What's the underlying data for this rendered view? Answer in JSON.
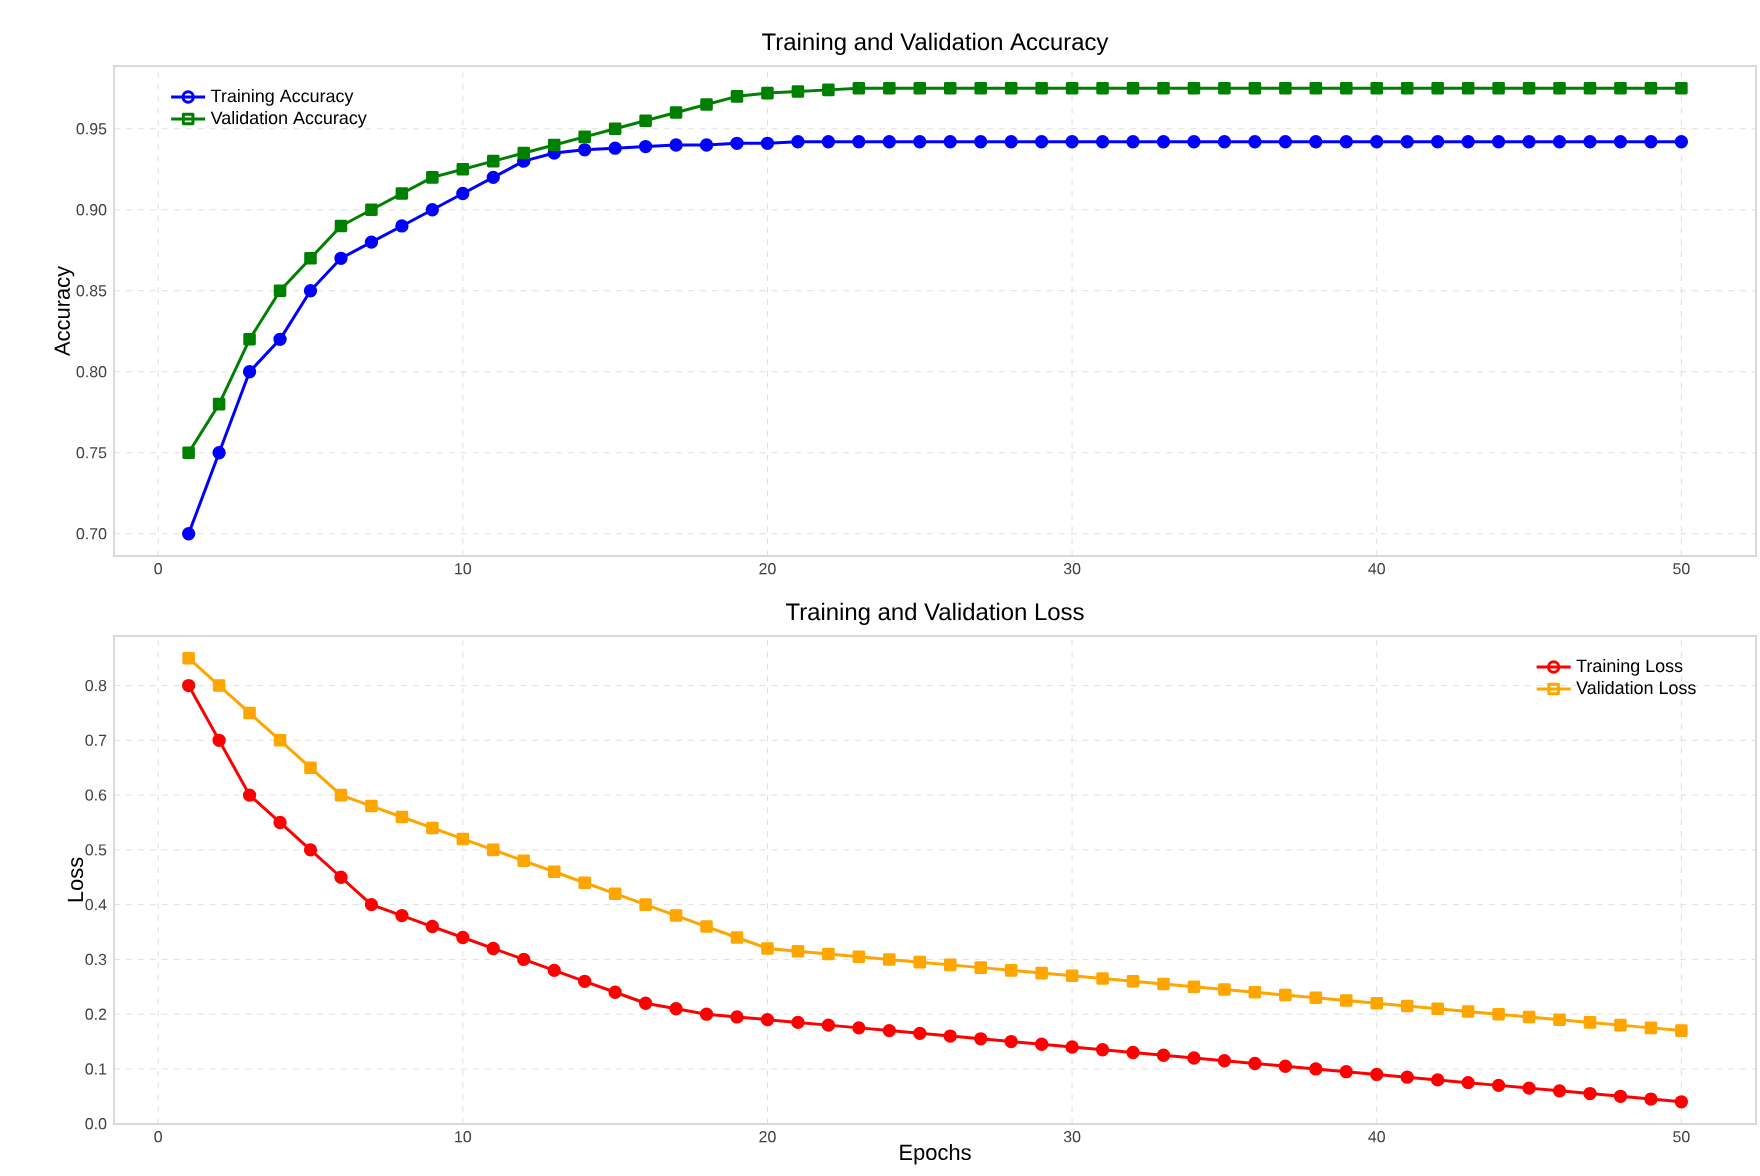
{
  "chart_data": [
    {
      "type": "line",
      "title": "Training and Validation Accuracy",
      "ylabel": "Accuracy",
      "x": [
        1,
        2,
        3,
        4,
        5,
        6,
        7,
        8,
        9,
        10,
        11,
        12,
        13,
        14,
        15,
        16,
        17,
        18,
        19,
        20,
        21,
        22,
        23,
        24,
        25,
        26,
        27,
        28,
        29,
        30,
        31,
        32,
        33,
        34,
        35,
        36,
        37,
        38,
        39,
        40,
        41,
        42,
        43,
        44,
        45,
        46,
        47,
        48,
        49,
        50
      ],
      "xlim": [
        -1.45,
        52.45
      ],
      "ylim": [
        0.68625,
        0.98875
      ],
      "xticks": [
        0,
        10,
        20,
        30,
        40,
        50
      ],
      "yticks": [
        {
          "value": 0.7,
          "label": "0.70"
        },
        {
          "value": 0.75,
          "label": "0.75"
        },
        {
          "value": 0.8,
          "label": "0.80"
        },
        {
          "value": 0.85,
          "label": "0.85"
        },
        {
          "value": 0.9,
          "label": "0.90"
        },
        {
          "value": 0.95,
          "label": "0.95"
        }
      ],
      "grid": true,
      "legend": "top left",
      "series": [
        {
          "name": "Training Accuracy",
          "color": "#0000ff",
          "marker": "circle",
          "values": [
            0.7,
            0.75,
            0.8,
            0.82,
            0.85,
            0.87,
            0.88,
            0.89,
            0.9,
            0.91,
            0.92,
            0.93,
            0.935,
            0.937,
            0.938,
            0.939,
            0.94,
            0.94,
            0.941,
            0.941,
            0.942,
            0.942,
            0.942,
            0.942,
            0.942,
            0.942,
            0.942,
            0.942,
            0.942,
            0.942,
            0.942,
            0.942,
            0.942,
            0.942,
            0.942,
            0.942,
            0.942,
            0.942,
            0.942,
            0.942,
            0.942,
            0.942,
            0.942,
            0.942,
            0.942,
            0.942,
            0.942,
            0.942,
            0.942,
            0.942
          ]
        },
        {
          "name": "Validation Accuracy",
          "color": "#008000",
          "marker": "square",
          "values": [
            0.75,
            0.78,
            0.82,
            0.85,
            0.87,
            0.89,
            0.9,
            0.91,
            0.92,
            0.925,
            0.93,
            0.935,
            0.94,
            0.945,
            0.95,
            0.955,
            0.96,
            0.965,
            0.97,
            0.972,
            0.973,
            0.974,
            0.975,
            0.975,
            0.975,
            0.975,
            0.975,
            0.975,
            0.975,
            0.975,
            0.975,
            0.975,
            0.975,
            0.975,
            0.975,
            0.975,
            0.975,
            0.975,
            0.975,
            0.975,
            0.975,
            0.975,
            0.975,
            0.975,
            0.975,
            0.975,
            0.975,
            0.975,
            0.975,
            0.975
          ]
        }
      ]
    },
    {
      "type": "line",
      "title": "Training and Validation Loss",
      "xlabel": "Epochs",
      "ylabel": "Loss",
      "x": [
        1,
        2,
        3,
        4,
        5,
        6,
        7,
        8,
        9,
        10,
        11,
        12,
        13,
        14,
        15,
        16,
        17,
        18,
        19,
        20,
        21,
        22,
        23,
        24,
        25,
        26,
        27,
        28,
        29,
        30,
        31,
        32,
        33,
        34,
        35,
        36,
        37,
        38,
        39,
        40,
        41,
        42,
        43,
        44,
        45,
        46,
        47,
        48,
        49,
        50
      ],
      "xlim": [
        -1.45,
        52.45
      ],
      "ylim": [
        -0.0005,
        0.8905
      ],
      "xticks": [
        0,
        10,
        20,
        30,
        40,
        50
      ],
      "yticks": [
        {
          "value": 0.0,
          "label": "0.0"
        },
        0.1,
        0.2,
        0.3,
        0.4,
        0.5,
        0.6,
        0.7,
        0.8
      ],
      "grid": true,
      "legend": "top right",
      "series": [
        {
          "name": "Training Loss",
          "color": "#ff0000",
          "marker": "circle",
          "values": [
            0.8,
            0.7,
            0.6,
            0.55,
            0.5,
            0.45,
            0.4,
            0.38,
            0.36,
            0.34,
            0.32,
            0.3,
            0.28,
            0.26,
            0.24,
            0.22,
            0.21,
            0.2,
            0.195,
            0.19,
            0.185,
            0.18,
            0.175,
            0.17,
            0.165,
            0.16,
            0.155,
            0.15,
            0.145,
            0.14,
            0.135,
            0.13,
            0.125,
            0.12,
            0.115,
            0.11,
            0.105,
            0.1,
            0.095,
            0.09,
            0.085,
            0.08,
            0.075,
            0.07,
            0.065,
            0.06,
            0.055,
            0.05,
            0.045,
            0.04
          ]
        },
        {
          "name": "Validation Loss",
          "color": "#ffa500",
          "marker": "square",
          "values": [
            0.85,
            0.8,
            0.75,
            0.7,
            0.65,
            0.6,
            0.58,
            0.56,
            0.54,
            0.52,
            0.5,
            0.48,
            0.46,
            0.44,
            0.42,
            0.4,
            0.38,
            0.36,
            0.34,
            0.32,
            0.315,
            0.31,
            0.305,
            0.3,
            0.295,
            0.29,
            0.285,
            0.28,
            0.275,
            0.27,
            0.265,
            0.26,
            0.255,
            0.25,
            0.245,
            0.24,
            0.235,
            0.23,
            0.225,
            0.22,
            0.215,
            0.21,
            0.205,
            0.2,
            0.195,
            0.19,
            0.185,
            0.18,
            0.175,
            0.17
          ]
        }
      ]
    }
  ]
}
